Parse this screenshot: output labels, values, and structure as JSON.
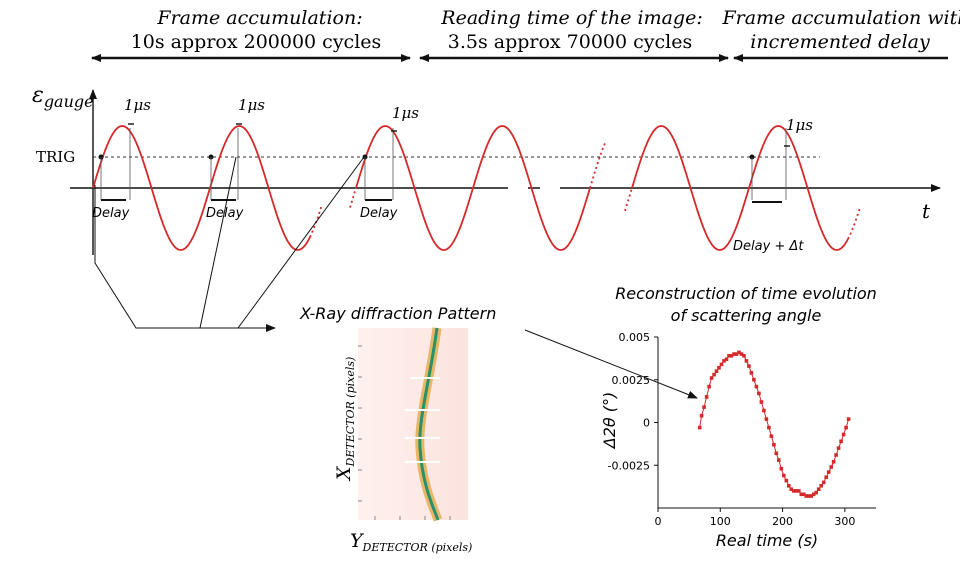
{
  "header": {
    "left_title": "Frame accumulation:",
    "left_sub": "10s approx 200000 cycles",
    "mid_title": "Reading time of the image:",
    "mid_sub": "3.5s approx 70000 cycles",
    "right_line1": "Frame accumulation with",
    "right_line2": "incremented delay"
  },
  "waveform": {
    "y_label": "ε",
    "y_label_sub": "gauge",
    "x_label": "t",
    "trig_label": "TRIG",
    "pulse_labels": [
      "1μs",
      "1μs",
      "1μs",
      "1μs"
    ],
    "delay_labels": [
      "Delay",
      "Delay",
      "Delay",
      "Delay + Δt"
    ]
  },
  "xray": {
    "title": "X-Ray diffraction Pattern",
    "x_axis_main": "X",
    "x_axis_sub": "DETECTOR (pixels)",
    "y_axis_main": "Y",
    "y_axis_sub": "DETECTOR (pixels)"
  },
  "chart_data": {
    "type": "scatter",
    "title": "Reconstruction of time evolution of scattering angle",
    "title_line1": "Reconstruction of time evolution",
    "title_line2": "of scattering angle",
    "xlabel": "Real time (s)",
    "ylabel": "Δ2θ (°)",
    "xlim": [
      0,
      350
    ],
    "ylim": [
      -0.005,
      0.005
    ],
    "xticks": [
      "0",
      "100",
      "200",
      "300"
    ],
    "yticks": [
      "0.005",
      "0.0025",
      "0",
      "-0.0025"
    ],
    "color": "#d42a2a",
    "series": [
      {
        "x": [
          67,
          70,
          74,
          78,
          82,
          86,
          90,
          94,
          98,
          102,
          106,
          110,
          114,
          118,
          122,
          126,
          130,
          134,
          138,
          142,
          146,
          150,
          154,
          158,
          162,
          166,
          170,
          174,
          178,
          182,
          186,
          190,
          194,
          198,
          202,
          206,
          210,
          214,
          218,
          222,
          226,
          230,
          234,
          238,
          242,
          246,
          250,
          254,
          258,
          262,
          266,
          270,
          274,
          278,
          282,
          286,
          290,
          294,
          298,
          302,
          306
        ],
        "y": [
          -0.0003,
          0.0004,
          0.0009,
          0.0015,
          0.0021,
          0.0026,
          0.0028,
          0.003,
          0.0032,
          0.0034,
          0.0036,
          0.0037,
          0.0039,
          0.0039,
          0.004,
          0.004,
          0.0041,
          0.004,
          0.0039,
          0.0036,
          0.0033,
          0.0029,
          0.0025,
          0.0021,
          0.0017,
          0.0012,
          0.0007,
          0.0002,
          -0.0003,
          -0.0008,
          -0.0013,
          -0.0018,
          -0.0022,
          -0.0027,
          -0.0031,
          -0.0034,
          -0.0037,
          -0.0039,
          -0.004,
          -0.004,
          -0.004,
          -0.0042,
          -0.0042,
          -0.0043,
          -0.0043,
          -0.0043,
          -0.0042,
          -0.0041,
          -0.0039,
          -0.0037,
          -0.0035,
          -0.0032,
          -0.0029,
          -0.0026,
          -0.0023,
          -0.0019,
          -0.0015,
          -0.0011,
          -0.0007,
          -0.0003,
          0.0002
        ]
      }
    ]
  },
  "colors": {
    "wave": "#d42a2a",
    "ink": "#111111",
    "diffraction_band": "#e6b866",
    "diffraction_core": "#2a8f6a"
  }
}
